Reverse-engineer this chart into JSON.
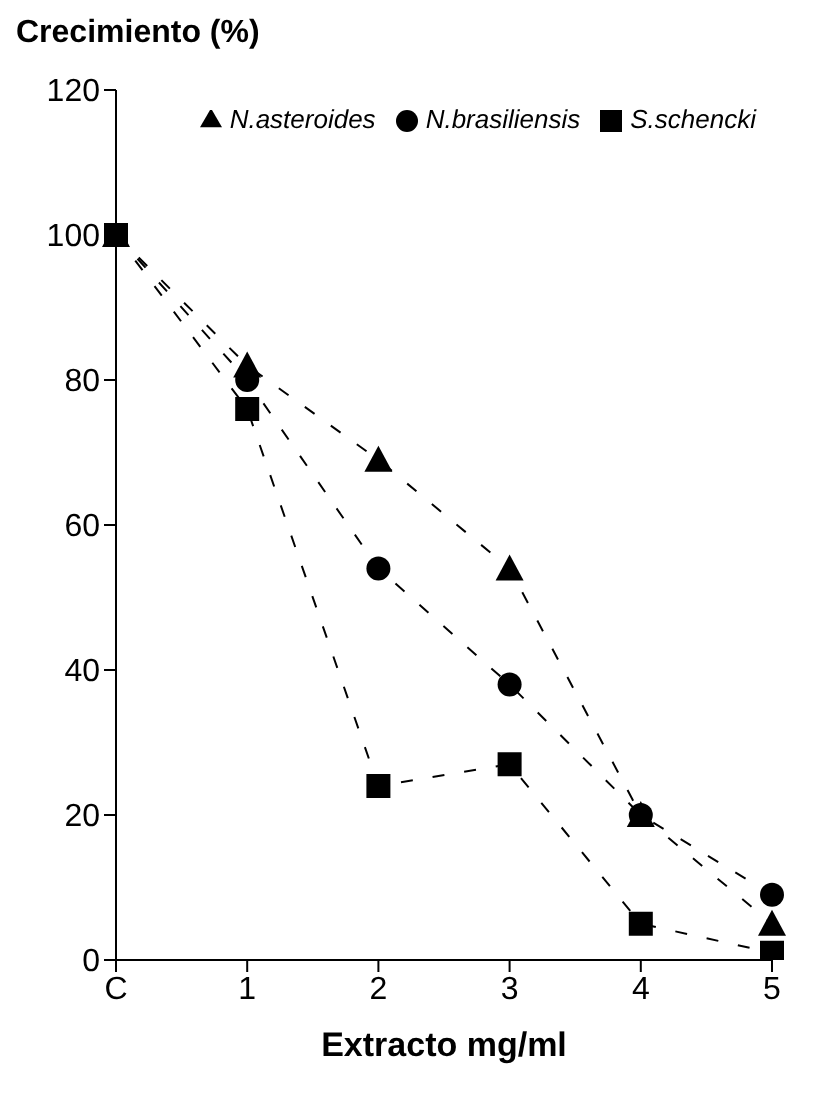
{
  "chart_data": {
    "type": "line",
    "title": "Crecimiento (%)",
    "xlabel": "Extracto mg/ml",
    "categories": [
      "C",
      "1",
      "2",
      "3",
      "4",
      "5"
    ],
    "series": [
      {
        "name": "S.schencki",
        "color": "#000000",
        "marker": "square",
        "values": [
          100,
          76,
          24,
          27,
          5,
          1
        ]
      },
      {
        "name": "N.asteroides",
        "color": "#000000",
        "marker": "triangle",
        "values": [
          100,
          82,
          69,
          54,
          20,
          5
        ]
      },
      {
        "name": "N.brasiliensis",
        "color": "#000000",
        "marker": "circle",
        "values": [
          100,
          80,
          54,
          38,
          20,
          9
        ]
      }
    ],
    "ylim": [
      0,
      120
    ],
    "yticks": [
      0,
      20,
      40,
      60,
      80,
      100,
      120
    ],
    "grid": false,
    "legend": "top right",
    "line_style": "dashed"
  }
}
